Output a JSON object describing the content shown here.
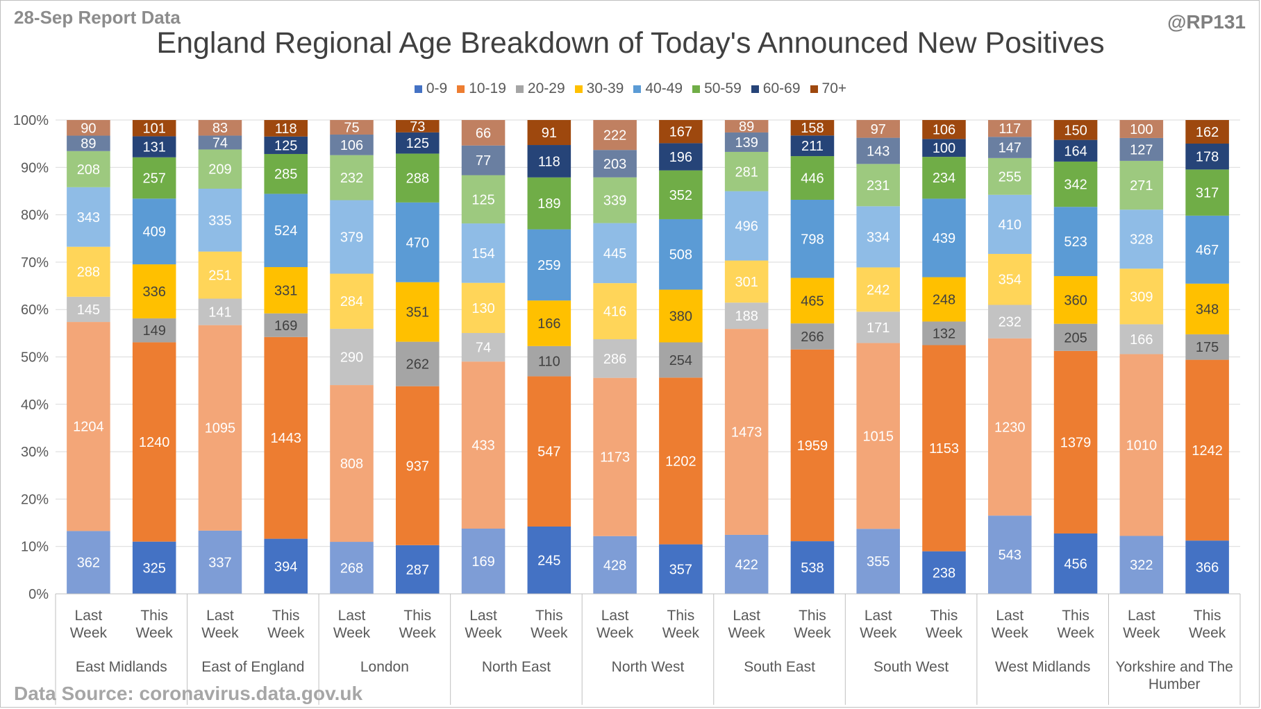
{
  "header": {
    "report_date": "28-Sep Report Data",
    "handle": "@RP131",
    "source": "Data Source: coronavirus.data.gov.uk"
  },
  "chart_data": {
    "type": "bar",
    "stacked": "percent",
    "title": "England Regional Age Breakdown of Today's Announced New Positives",
    "legend_position": "top",
    "yticks": [
      "0%",
      "10%",
      "20%",
      "30%",
      "40%",
      "50%",
      "60%",
      "70%",
      "80%",
      "90%",
      "100%"
    ],
    "ylim": [
      0,
      100
    ],
    "series_names": [
      "0-9",
      "10-19",
      "20-29",
      "30-39",
      "40-49",
      "50-59",
      "60-69",
      "70+"
    ],
    "colors": {
      "this_week": [
        "#4472c4",
        "#ed7d31",
        "#a5a5a5",
        "#ffc000",
        "#5b9bd5",
        "#70ad47",
        "#264478",
        "#9e480e"
      ],
      "last_week": [
        "#7e9dd6",
        "#f3a678",
        "#c3c3c3",
        "#ffd559",
        "#8fbce6",
        "#9dc97f",
        "#6a7fa1",
        "#c08061"
      ]
    },
    "groups": [
      {
        "region": [
          "East Midlands"
        ],
        "bars": [
          {
            "label": [
              "Last",
              "Week"
            ],
            "values": [
              362,
              1204,
              145,
              288,
              343,
              208,
              89,
              90
            ]
          },
          {
            "label": [
              "This",
              "Week"
            ],
            "values": [
              325,
              1240,
              149,
              336,
              409,
              257,
              131,
              101
            ]
          }
        ]
      },
      {
        "region": [
          "East of England"
        ],
        "bars": [
          {
            "label": [
              "Last",
              "Week"
            ],
            "values": [
              337,
              1095,
              141,
              251,
              335,
              209,
              74,
              83
            ]
          },
          {
            "label": [
              "This",
              "Week"
            ],
            "values": [
              394,
              1443,
              169,
              331,
              524,
              285,
              125,
              118
            ]
          }
        ]
      },
      {
        "region": [
          "London"
        ],
        "bars": [
          {
            "label": [
              "Last",
              "Week"
            ],
            "values": [
              268,
              808,
              290,
              284,
              379,
              232,
              106,
              75
            ]
          },
          {
            "label": [
              "This",
              "Week"
            ],
            "values": [
              287,
              937,
              262,
              351,
              470,
              288,
              125,
              73
            ]
          }
        ]
      },
      {
        "region": [
          "North East"
        ],
        "bars": [
          {
            "label": [
              "Last",
              "Week"
            ],
            "values": [
              169,
              433,
              74,
              130,
              154,
              125,
              77,
              66
            ]
          },
          {
            "label": [
              "This",
              "Week"
            ],
            "values": [
              245,
              547,
              110,
              166,
              259,
              189,
              118,
              91
            ]
          }
        ]
      },
      {
        "region": [
          "North West"
        ],
        "bars": [
          {
            "label": [
              "Last",
              "Week"
            ],
            "values": [
              428,
              1173,
              286,
              416,
              445,
              339,
              203,
              222
            ]
          },
          {
            "label": [
              "This",
              "Week"
            ],
            "values": [
              357,
              1202,
              254,
              380,
              508,
              352,
              196,
              167
            ]
          }
        ]
      },
      {
        "region": [
          "South East"
        ],
        "bars": [
          {
            "label": [
              "Last",
              "Week"
            ],
            "values": [
              422,
              1473,
              188,
              301,
              496,
              281,
              139,
              89
            ]
          },
          {
            "label": [
              "This",
              "Week"
            ],
            "values": [
              538,
              1959,
              266,
              465,
              798,
              446,
              211,
              158
            ]
          }
        ]
      },
      {
        "region": [
          "South West"
        ],
        "bars": [
          {
            "label": [
              "Last",
              "Week"
            ],
            "values": [
              355,
              1015,
              171,
              242,
              334,
              231,
              143,
              97
            ]
          },
          {
            "label": [
              "This",
              "Week"
            ],
            "values": [
              238,
              1153,
              132,
              248,
              439,
              234,
              100,
              106
            ]
          }
        ]
      },
      {
        "region": [
          "West Midlands"
        ],
        "bars": [
          {
            "label": [
              "Last",
              "Week"
            ],
            "values": [
              543,
              1230,
              232,
              354,
              410,
              255,
              147,
              117
            ]
          },
          {
            "label": [
              "This",
              "Week"
            ],
            "values": [
              456,
              1379,
              205,
              360,
              523,
              342,
              164,
              150
            ]
          }
        ]
      },
      {
        "region": [
          "Yorkshire and The",
          "Humber"
        ],
        "bars": [
          {
            "label": [
              "Last",
              "Week"
            ],
            "values": [
              322,
              1010,
              166,
              309,
              328,
              271,
              127,
              100
            ]
          },
          {
            "label": [
              "This",
              "Week"
            ],
            "values": [
              366,
              1242,
              175,
              348,
              467,
              317,
              178,
              162
            ]
          }
        ]
      }
    ]
  }
}
